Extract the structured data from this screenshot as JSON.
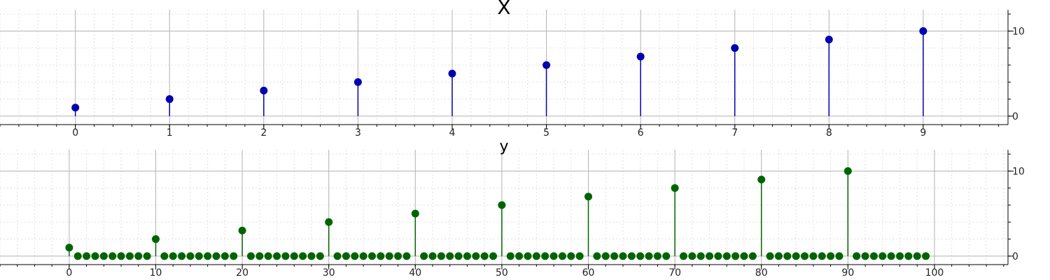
{
  "colors": {
    "top_series": "#0000b0",
    "bottom_series": "#006400",
    "major_grid": "#b4b4b4",
    "minor_grid": "#e0e0e0",
    "axis": "#000000"
  },
  "chart_data": [
    {
      "type": "stem",
      "title": "X",
      "xlabel": "",
      "ylabel": "",
      "xlim": [
        -0.8,
        9.9
      ],
      "ylim": [
        -1,
        12.5
      ],
      "x_ticks": [
        0,
        1,
        2,
        3,
        4,
        5,
        6,
        7,
        8,
        9
      ],
      "y_ticks": [
        0,
        10
      ],
      "y_axis_side": "right",
      "grid": true,
      "minor_grid": true,
      "series": [
        {
          "color": "#0000b0",
          "x": [
            0,
            1,
            2,
            3,
            4,
            5,
            6,
            7,
            8,
            9
          ],
          "values": [
            1,
            2,
            3,
            4,
            5,
            6,
            7,
            8,
            9,
            10
          ]
        }
      ]
    },
    {
      "type": "stem",
      "title": "y",
      "xlabel": "",
      "ylabel": "",
      "xlim": [
        -8,
        108.5
      ],
      "ylim": [
        -1,
        12.5
      ],
      "x_ticks": [
        0,
        10,
        20,
        30,
        40,
        50,
        60,
        70,
        80,
        90,
        100
      ],
      "y_ticks": [
        0,
        10
      ],
      "y_axis_side": "right",
      "grid": true,
      "minor_grid": true,
      "series": [
        {
          "color": "#006400",
          "x": [
            0,
            1,
            2,
            3,
            4,
            5,
            6,
            7,
            8,
            9,
            10,
            11,
            12,
            13,
            14,
            15,
            16,
            17,
            18,
            19,
            20,
            21,
            22,
            23,
            24,
            25,
            26,
            27,
            28,
            29,
            30,
            31,
            32,
            33,
            34,
            35,
            36,
            37,
            38,
            39,
            40,
            41,
            42,
            43,
            44,
            45,
            46,
            47,
            48,
            49,
            50,
            51,
            52,
            53,
            54,
            55,
            56,
            57,
            58,
            59,
            60,
            61,
            62,
            63,
            64,
            65,
            66,
            67,
            68,
            69,
            70,
            71,
            72,
            73,
            74,
            75,
            76,
            77,
            78,
            79,
            80,
            81,
            82,
            83,
            84,
            85,
            86,
            87,
            88,
            89,
            90,
            91,
            92,
            93,
            94,
            95,
            96,
            97,
            98,
            99
          ],
          "values": [
            1,
            0,
            0,
            0,
            0,
            0,
            0,
            0,
            0,
            0,
            2,
            0,
            0,
            0,
            0,
            0,
            0,
            0,
            0,
            0,
            3,
            0,
            0,
            0,
            0,
            0,
            0,
            0,
            0,
            0,
            4,
            0,
            0,
            0,
            0,
            0,
            0,
            0,
            0,
            0,
            5,
            0,
            0,
            0,
            0,
            0,
            0,
            0,
            0,
            0,
            6,
            0,
            0,
            0,
            0,
            0,
            0,
            0,
            0,
            0,
            7,
            0,
            0,
            0,
            0,
            0,
            0,
            0,
            0,
            0,
            8,
            0,
            0,
            0,
            0,
            0,
            0,
            0,
            0,
            0,
            9,
            0,
            0,
            0,
            0,
            0,
            0,
            0,
            0,
            0,
            10,
            0,
            0,
            0,
            0,
            0,
            0,
            0,
            0,
            0
          ]
        }
      ]
    }
  ]
}
